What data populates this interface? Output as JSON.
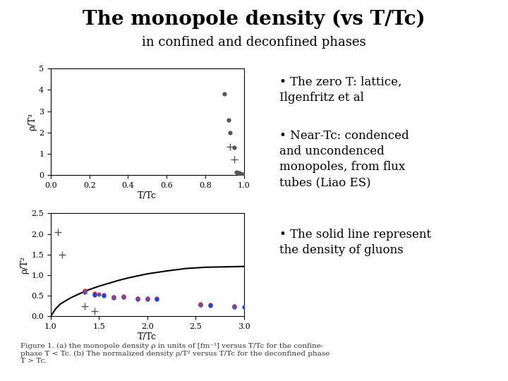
{
  "title": "The monopole density (vs T/Tc)",
  "subtitle": "in confined and deconfined phases",
  "annotations": [
    "• The zero T: lattice,\nIlgenfritz et al",
    "• Near-Tc: condenced\nand uncondenced\nmonopoles, from flux\ntubes (Liao ES)",
    "• The solid line represent\nthe density of gluons",
    "Figure 1. (a) the monopole density ρ in units of [fm⁻³] versus T/Tc for the confine-\nphase T < Tc. (b) The normalized density ρ/T² versus T/Tc for the deconfined phase\nT > Tc."
  ],
  "chart_data": [
    {
      "type": "scatter",
      "xlabel": "T/Tc",
      "ylabel": "ρ/T³",
      "xlim": [
        0.0,
        1.0
      ],
      "ylim": [
        0.0,
        5.0
      ],
      "xticks": [
        0.0,
        0.2,
        0.4,
        0.6,
        0.8,
        1.0
      ],
      "yticks": [
        0,
        1,
        2,
        3,
        4,
        5
      ],
      "series": [
        {
          "type": "scatter",
          "marker": "circle",
          "color": "#555555",
          "x": [
            0.9,
            0.92,
            0.93,
            0.95,
            0.96,
            0.97,
            0.975,
            0.98,
            0.985,
            0.99,
            0.995,
            1.0
          ],
          "values": [
            3.8,
            2.6,
            2.0,
            1.3,
            0.15,
            0.12,
            0.1,
            0.08,
            0.05,
            0.04,
            0.03,
            0.02
          ]
        },
        {
          "type": "scatter",
          "marker": "plus",
          "color": "#555555",
          "x": [
            0.93,
            0.95
          ],
          "values": [
            1.35,
            0.75
          ]
        }
      ]
    },
    {
      "type": "scatter",
      "xlabel": "T/Tc",
      "ylabel": "ρ/T²",
      "xlim": [
        1.0,
        3.0
      ],
      "ylim": [
        0.0,
        2.5
      ],
      "xticks": [
        1.0,
        1.5,
        2.0,
        2.5,
        3.0
      ],
      "yticks": [
        0.0,
        0.5,
        1.0,
        1.5,
        2.0,
        2.5
      ],
      "series": [
        {
          "type": "line",
          "line_style": "solid",
          "color": "#000000",
          "x": [
            1.0,
            1.05,
            1.1,
            1.2,
            1.3,
            1.4,
            1.5,
            1.6,
            1.7,
            1.8,
            1.9,
            2.0,
            2.2,
            2.4,
            2.6,
            2.8,
            3.0
          ],
          "values": [
            0.0,
            0.18,
            0.3,
            0.44,
            0.55,
            0.65,
            0.73,
            0.8,
            0.87,
            0.93,
            0.98,
            1.03,
            1.1,
            1.16,
            1.19,
            1.2,
            1.21
          ]
        },
        {
          "type": "scatter",
          "marker": "plus",
          "color": "#555555",
          "x": [
            1.07,
            1.12,
            1.35,
            1.45
          ],
          "values": [
            2.05,
            1.5,
            0.25,
            0.12
          ]
        },
        {
          "type": "scatter",
          "marker": "circle",
          "color": "#cc2222",
          "x": [
            1.35,
            1.45,
            1.55,
            1.65,
            1.75,
            1.9,
            2.0,
            2.1,
            2.55,
            2.65,
            2.9
          ],
          "values": [
            0.62,
            0.55,
            0.52,
            0.47,
            0.48,
            0.44,
            0.44,
            0.43,
            0.3,
            0.28,
            0.25
          ]
        },
        {
          "type": "scatter",
          "marker": "circle",
          "color": "#2244cc",
          "x": [
            1.35,
            1.45,
            1.55,
            1.65,
            1.75,
            1.9,
            2.0,
            2.1,
            2.55,
            2.65,
            2.9,
            3.0
          ],
          "values": [
            0.59,
            0.52,
            0.5,
            0.45,
            0.46,
            0.42,
            0.42,
            0.41,
            0.27,
            0.26,
            0.23,
            0.22
          ]
        },
        {
          "type": "scatter",
          "marker": "circle",
          "color": "#884488",
          "x": [
            1.35,
            1.5,
            1.65,
            1.75,
            1.9,
            2.0,
            2.55,
            2.9
          ],
          "values": [
            0.6,
            0.53,
            0.46,
            0.47,
            0.43,
            0.43,
            0.28,
            0.24
          ]
        }
      ]
    }
  ]
}
